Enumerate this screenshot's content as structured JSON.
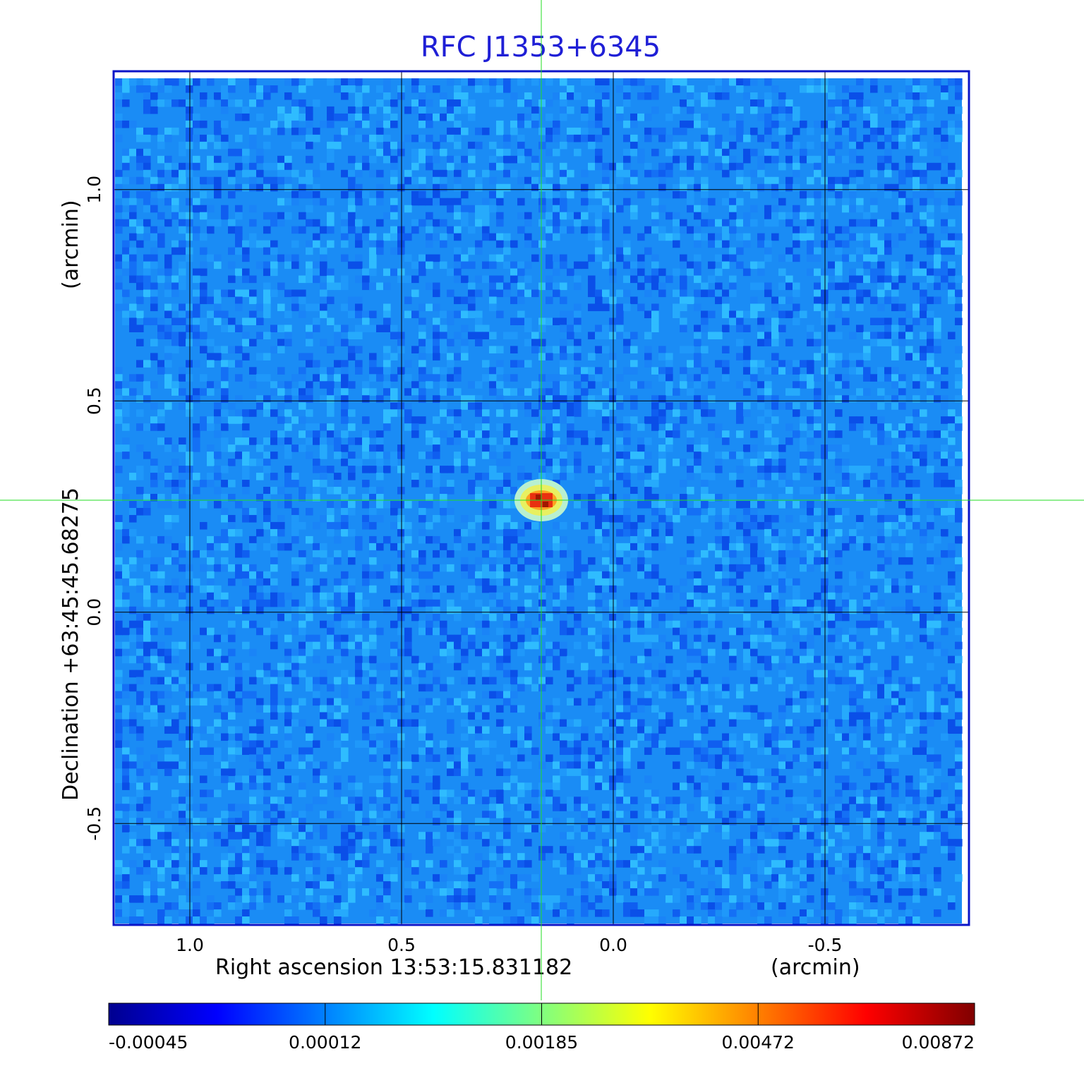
{
  "chart_data": {
    "type": "heatmap",
    "title": "RFC J1353+6345",
    "xlabel": "Right ascension  13:53:15.831182",
    "xunit": "(arcmin)",
    "ylabel": "Declination  +63:45:45.68275",
    "yunit": "(arcmin)",
    "x_ticks": [
      1.0,
      0.5,
      0.0,
      -0.5
    ],
    "x_tick_labels": [
      "1.0",
      "0.5",
      "0.0",
      "-0.5"
    ],
    "y_ticks": [
      1.0,
      0.5,
      0.0,
      -0.5
    ],
    "y_tick_labels": [
      "1.0",
      "0.5",
      "0.0",
      "-0.5"
    ],
    "xlim": [
      1.18,
      -0.84
    ],
    "ylim": [
      -0.74,
      1.28
    ],
    "grid": true,
    "crosshair": {
      "x": 0.17,
      "y": 0.265
    },
    "peak": {
      "x": 0.17,
      "y": 0.265,
      "value": 0.00872
    },
    "colorbar": {
      "tick_labels": [
        "-0.00045",
        "0.00012",
        "0.00185",
        "0.00472",
        "0.00872"
      ],
      "colormap": [
        "#00008f",
        "#0000ff",
        "#0080ff",
        "#00ffff",
        "#80ff80",
        "#ffff00",
        "#ff8000",
        "#ff0000",
        "#800000"
      ]
    },
    "colors": {
      "frame": "#0a14c8",
      "title": "#1f1fd6",
      "crosshair": "#22dd22",
      "background_noise": "#1a8cf5"
    }
  }
}
